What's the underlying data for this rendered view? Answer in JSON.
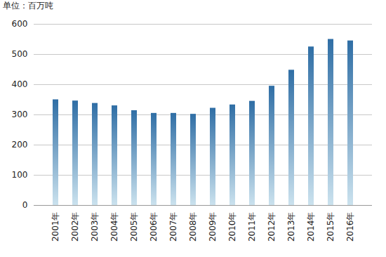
{
  "chart_data": {
    "type": "bar",
    "y_label": "单位：百万吨",
    "categories": [
      "2001年",
      "2002年",
      "2003年",
      "2004年",
      "2005年",
      "2006年",
      "2007年",
      "2008年",
      "2009年",
      "2010年",
      "2011年",
      "2012年",
      "2013年",
      "2014年",
      "2015年",
      "2016年"
    ],
    "values": [
      350,
      346,
      338,
      330,
      314,
      305,
      305,
      302,
      322,
      333,
      345,
      395,
      448,
      525,
      550,
      545
    ],
    "color": "#2f6ea5",
    "ylim": [
      0,
      600
    ],
    "yticks": [
      0,
      100,
      200,
      300,
      400,
      500,
      600
    ],
    "grid": true
  }
}
